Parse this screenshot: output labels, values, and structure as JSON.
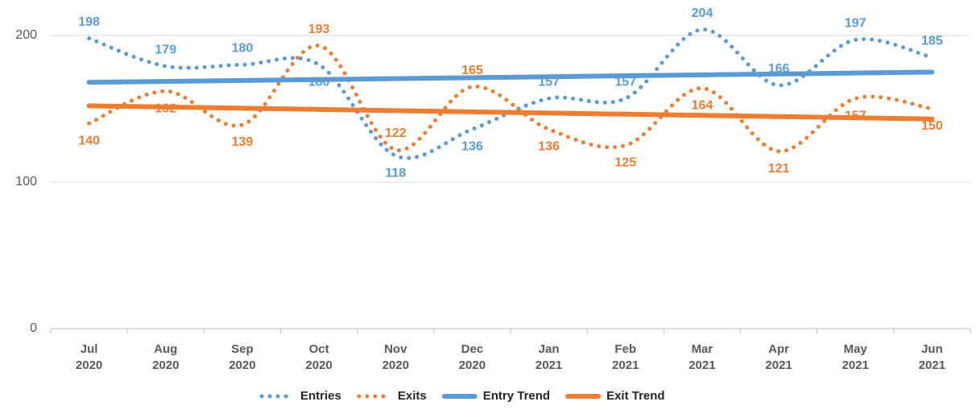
{
  "chart_data": {
    "type": "line",
    "categories": [
      "Jul 2020",
      "Aug 2020",
      "Sep 2020",
      "Oct 2020",
      "Nov 2020",
      "Dec 2020",
      "Jan 2021",
      "Feb 2021",
      "Mar 2021",
      "Apr 2021",
      "May 2021",
      "Jun 2021"
    ],
    "series": [
      {
        "name": "Entries",
        "color": "#5b9bd5",
        "style": "dotted",
        "labels": true,
        "values": [
          198,
          179,
          180,
          180,
          118,
          136,
          157,
          157,
          204,
          166,
          197,
          185
        ]
      },
      {
        "name": "Exits",
        "color": "#ed7d31",
        "style": "dotted",
        "labels": true,
        "values": [
          140,
          162,
          139,
          193,
          122,
          165,
          136,
          125,
          164,
          121,
          157,
          150
        ]
      },
      {
        "name": "Entry Trend",
        "color": "#5b9bd5",
        "style": "solid",
        "labels": false,
        "values": [
          168,
          168.6,
          169.3,
          169.9,
          170.5,
          171.2,
          171.8,
          172.5,
          173.1,
          173.7,
          174.4,
          175
        ]
      },
      {
        "name": "Exit Trend",
        "color": "#ed7d31",
        "style": "solid",
        "labels": false,
        "values": [
          152,
          151.2,
          150.4,
          149.5,
          148.7,
          147.9,
          147.1,
          146.3,
          145.5,
          144.6,
          143.8,
          143
        ]
      }
    ],
    "ylim": [
      0,
      220
    ],
    "yticks": [
      0,
      100,
      200
    ],
    "grid": true,
    "legend": "bottom"
  }
}
